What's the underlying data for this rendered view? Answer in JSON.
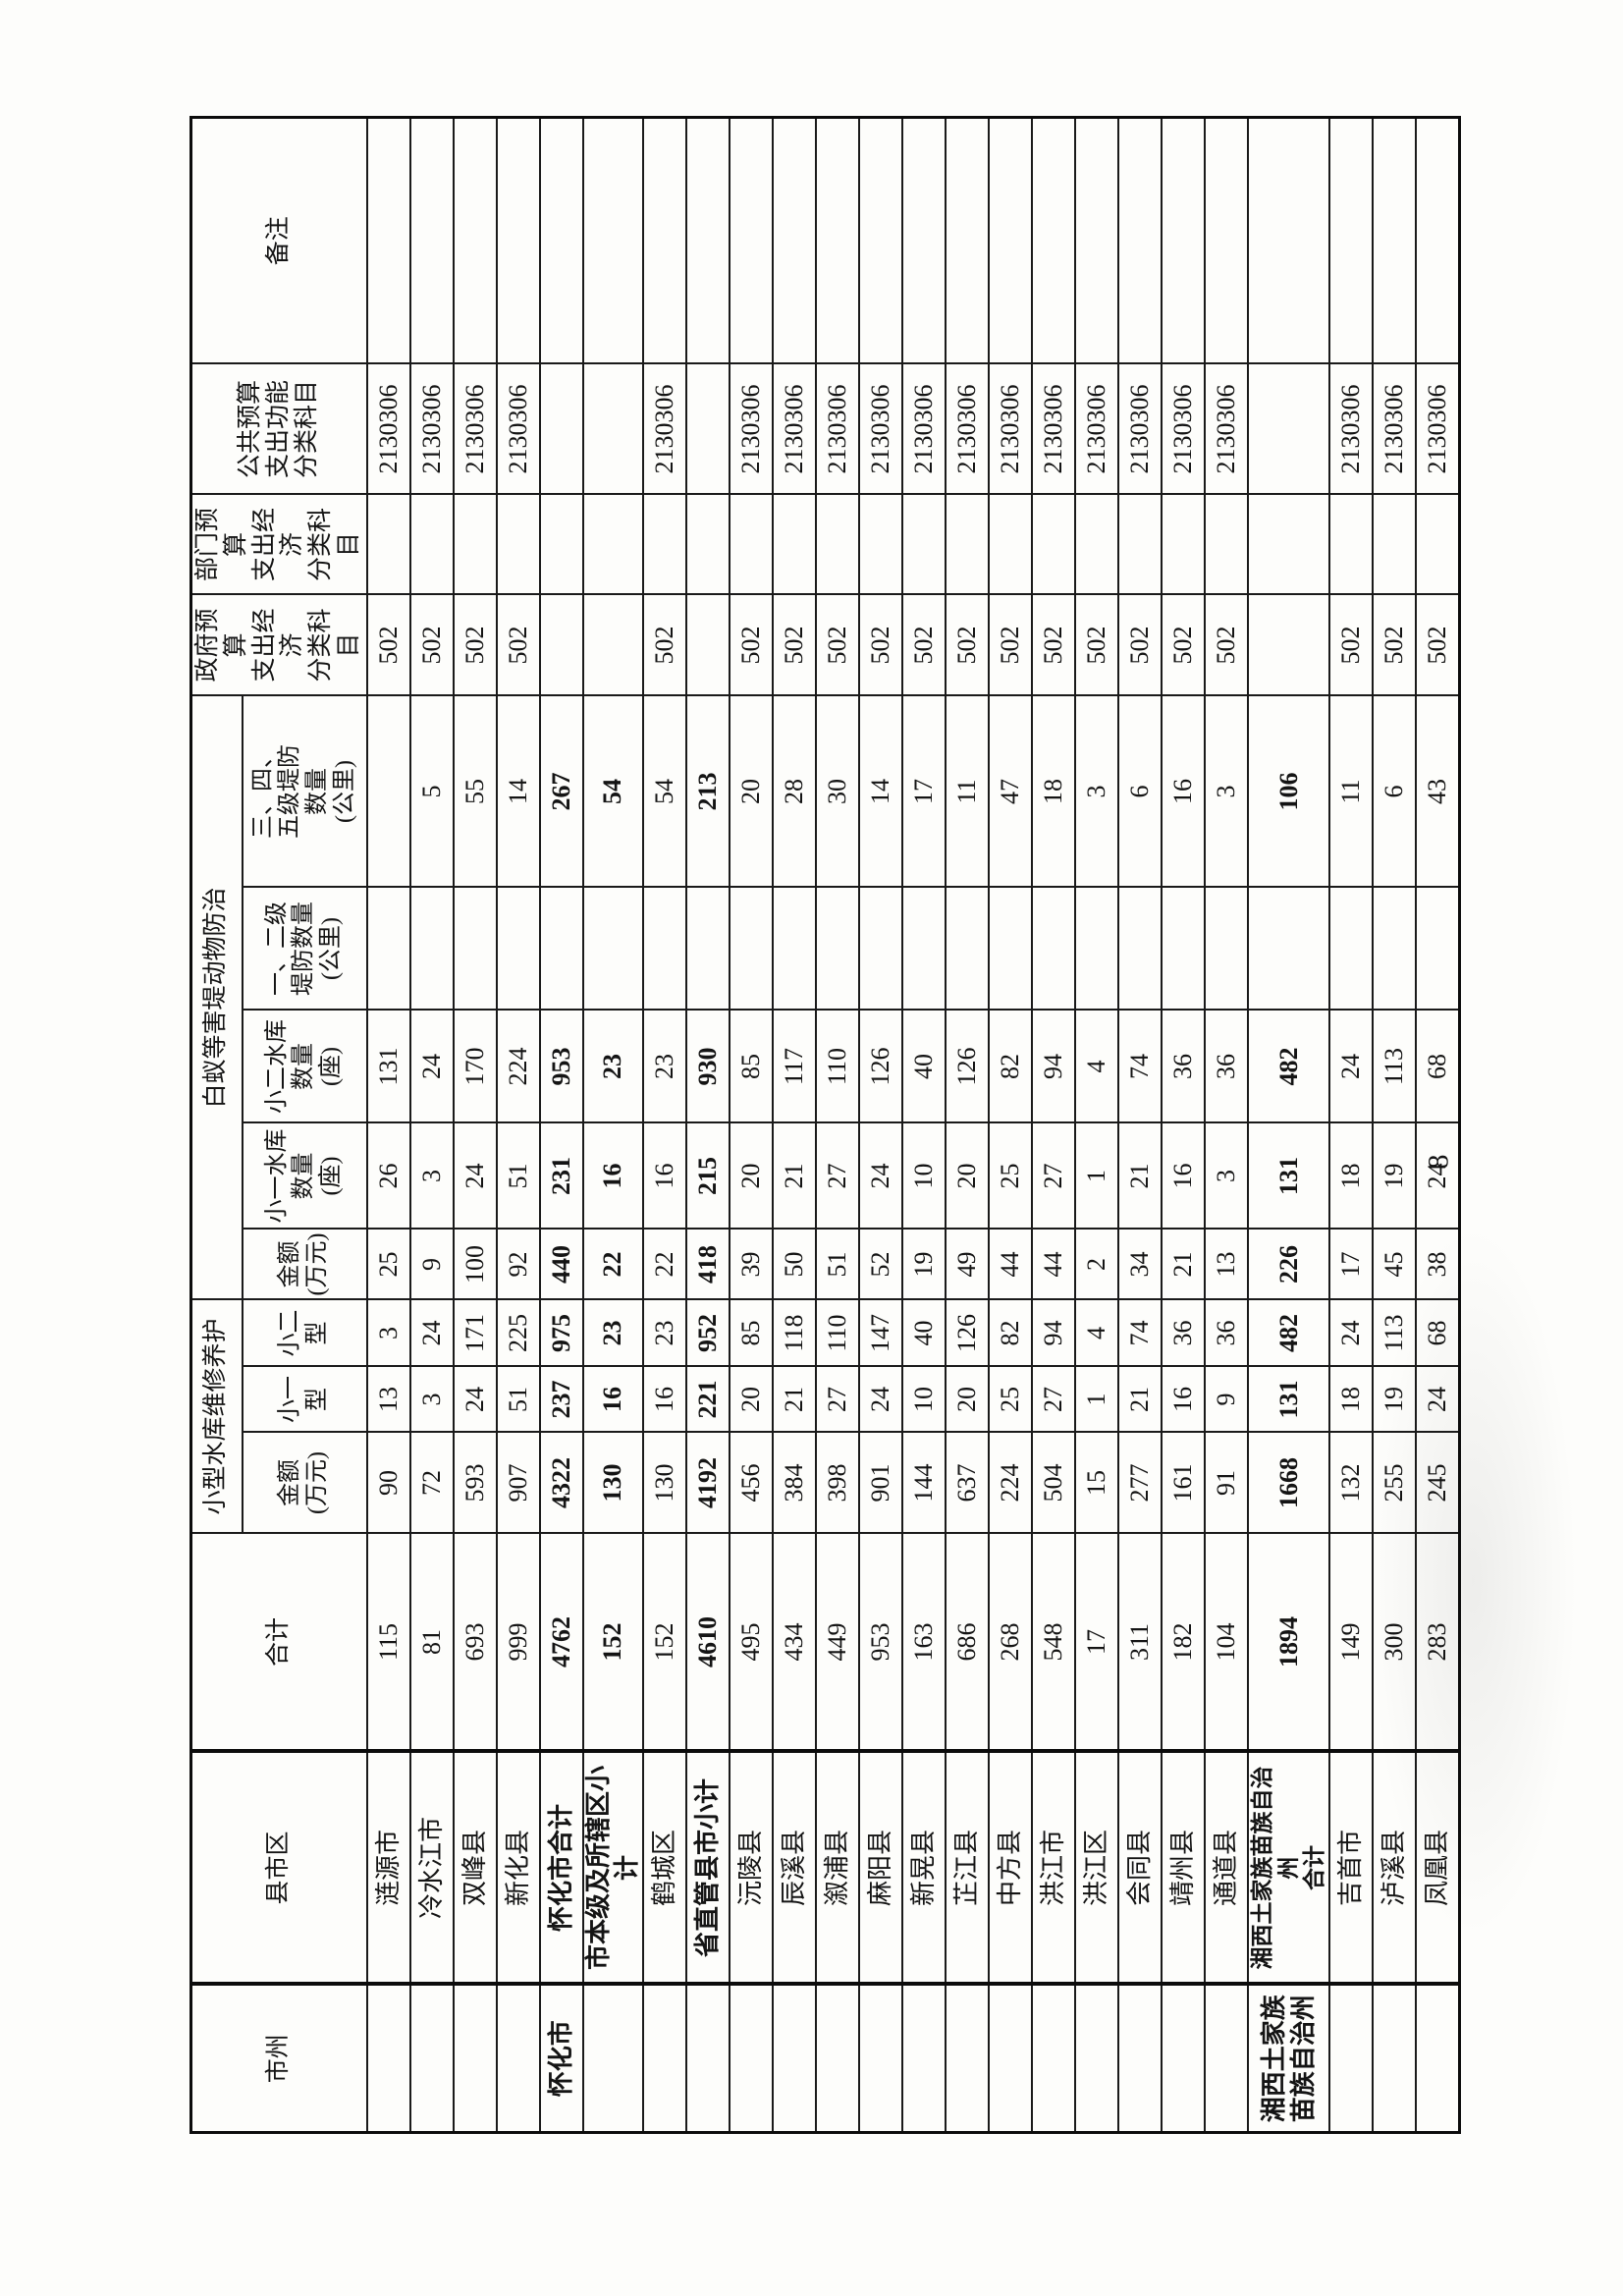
{
  "page": {
    "number": "8"
  },
  "table": {
    "headers": {
      "prefecture": "市州",
      "county": "县市区",
      "total": "合计",
      "group_reservoir": "小型水库维修养护",
      "group_pest": "白蚁等害堤动物防治",
      "maint_amount": "金额\n(万元)",
      "maint_small1": "小一\n型",
      "maint_small2": "小二\n型",
      "pest_amount": "金额\n(万元)",
      "pest_res1": "小一水库\n数量\n(座)",
      "pest_res2": "小二水库\n数量\n(座)",
      "dike_12": "一、二级\n堤防数量\n(公里)",
      "dike_345": "三、四、\n五级堤防\n数量\n(公里)",
      "gov_code": "政府预算\n支出经济\n分类科目",
      "dept_code": "部门预算\n支出经济\n分类科目",
      "public_code": "公共预算\n支出功能\n分类科目",
      "remark": "备注"
    },
    "rows": [
      {
        "prefecture": "",
        "county": "涟源市",
        "total": "115",
        "maint_amount": "90",
        "maint_small1": "13",
        "maint_small2": "3",
        "pest_amount": "25",
        "pest_res1": "26",
        "pest_res2": "131",
        "dike_12": "",
        "dike_345": "",
        "gov_code": "502",
        "dept_code": "",
        "public_code": "2130306",
        "remark": "",
        "bold": false,
        "tall": false
      },
      {
        "prefecture": "",
        "county": "冷水江市",
        "total": "81",
        "maint_amount": "72",
        "maint_small1": "3",
        "maint_small2": "24",
        "pest_amount": "9",
        "pest_res1": "3",
        "pest_res2": "24",
        "dike_12": "",
        "dike_345": "5",
        "gov_code": "502",
        "dept_code": "",
        "public_code": "2130306",
        "remark": "",
        "bold": false,
        "tall": false
      },
      {
        "prefecture": "",
        "county": "双峰县",
        "total": "693",
        "maint_amount": "593",
        "maint_small1": "24",
        "maint_small2": "171",
        "pest_amount": "100",
        "pest_res1": "24",
        "pest_res2": "170",
        "dike_12": "",
        "dike_345": "55",
        "gov_code": "502",
        "dept_code": "",
        "public_code": "2130306",
        "remark": "",
        "bold": false,
        "tall": false
      },
      {
        "prefecture": "",
        "county": "新化县",
        "total": "999",
        "maint_amount": "907",
        "maint_small1": "51",
        "maint_small2": "225",
        "pest_amount": "92",
        "pest_res1": "51",
        "pest_res2": "224",
        "dike_12": "",
        "dike_345": "14",
        "gov_code": "502",
        "dept_code": "",
        "public_code": "2130306",
        "remark": "",
        "bold": false,
        "tall": false
      },
      {
        "prefecture": "怀化市",
        "county": "怀化市合计",
        "total": "4762",
        "maint_amount": "4322",
        "maint_small1": "237",
        "maint_small2": "975",
        "pest_amount": "440",
        "pest_res1": "231",
        "pest_res2": "953",
        "dike_12": "",
        "dike_345": "267",
        "gov_code": "",
        "dept_code": "",
        "public_code": "",
        "remark": "",
        "bold": true,
        "tall": false
      },
      {
        "prefecture": "",
        "county": "市本级及所辖区小计",
        "total": "152",
        "maint_amount": "130",
        "maint_small1": "16",
        "maint_small2": "23",
        "pest_amount": "22",
        "pest_res1": "16",
        "pest_res2": "23",
        "dike_12": "",
        "dike_345": "54",
        "gov_code": "",
        "dept_code": "",
        "public_code": "",
        "remark": "",
        "bold": true,
        "tall": false
      },
      {
        "prefecture": "",
        "county": "鹤城区",
        "total": "152",
        "maint_amount": "130",
        "maint_small1": "16",
        "maint_small2": "23",
        "pest_amount": "22",
        "pest_res1": "16",
        "pest_res2": "23",
        "dike_12": "",
        "dike_345": "54",
        "gov_code": "502",
        "dept_code": "",
        "public_code": "2130306",
        "remark": "",
        "bold": false,
        "tall": false
      },
      {
        "prefecture": "",
        "county": "省直管县市小计",
        "total": "4610",
        "maint_amount": "4192",
        "maint_small1": "221",
        "maint_small2": "952",
        "pest_amount": "418",
        "pest_res1": "215",
        "pest_res2": "930",
        "dike_12": "",
        "dike_345": "213",
        "gov_code": "",
        "dept_code": "",
        "public_code": "",
        "remark": "",
        "bold": true,
        "tall": false
      },
      {
        "prefecture": "",
        "county": "沅陵县",
        "total": "495",
        "maint_amount": "456",
        "maint_small1": "20",
        "maint_small2": "85",
        "pest_amount": "39",
        "pest_res1": "20",
        "pest_res2": "85",
        "dike_12": "",
        "dike_345": "20",
        "gov_code": "502",
        "dept_code": "",
        "public_code": "2130306",
        "remark": "",
        "bold": false,
        "tall": false
      },
      {
        "prefecture": "",
        "county": "辰溪县",
        "total": "434",
        "maint_amount": "384",
        "maint_small1": "21",
        "maint_small2": "118",
        "pest_amount": "50",
        "pest_res1": "21",
        "pest_res2": "117",
        "dike_12": "",
        "dike_345": "28",
        "gov_code": "502",
        "dept_code": "",
        "public_code": "2130306",
        "remark": "",
        "bold": false,
        "tall": false
      },
      {
        "prefecture": "",
        "county": "溆浦县",
        "total": "449",
        "maint_amount": "398",
        "maint_small1": "27",
        "maint_small2": "110",
        "pest_amount": "51",
        "pest_res1": "27",
        "pest_res2": "110",
        "dike_12": "",
        "dike_345": "30",
        "gov_code": "502",
        "dept_code": "",
        "public_code": "2130306",
        "remark": "",
        "bold": false,
        "tall": false
      },
      {
        "prefecture": "",
        "county": "麻阳县",
        "total": "953",
        "maint_amount": "901",
        "maint_small1": "24",
        "maint_small2": "147",
        "pest_amount": "52",
        "pest_res1": "24",
        "pest_res2": "126",
        "dike_12": "",
        "dike_345": "14",
        "gov_code": "502",
        "dept_code": "",
        "public_code": "2130306",
        "remark": "",
        "bold": false,
        "tall": false
      },
      {
        "prefecture": "",
        "county": "新晃县",
        "total": "163",
        "maint_amount": "144",
        "maint_small1": "10",
        "maint_small2": "40",
        "pest_amount": "19",
        "pest_res1": "10",
        "pest_res2": "40",
        "dike_12": "",
        "dike_345": "17",
        "gov_code": "502",
        "dept_code": "",
        "public_code": "2130306",
        "remark": "",
        "bold": false,
        "tall": false
      },
      {
        "prefecture": "",
        "county": "芷江县",
        "total": "686",
        "maint_amount": "637",
        "maint_small1": "20",
        "maint_small2": "126",
        "pest_amount": "49",
        "pest_res1": "20",
        "pest_res2": "126",
        "dike_12": "",
        "dike_345": "11",
        "gov_code": "502",
        "dept_code": "",
        "public_code": "2130306",
        "remark": "",
        "bold": false,
        "tall": false
      },
      {
        "prefecture": "",
        "county": "中方县",
        "total": "268",
        "maint_amount": "224",
        "maint_small1": "25",
        "maint_small2": "82",
        "pest_amount": "44",
        "pest_res1": "25",
        "pest_res2": "82",
        "dike_12": "",
        "dike_345": "47",
        "gov_code": "502",
        "dept_code": "",
        "public_code": "2130306",
        "remark": "",
        "bold": false,
        "tall": false
      },
      {
        "prefecture": "",
        "county": "洪江市",
        "total": "548",
        "maint_amount": "504",
        "maint_small1": "27",
        "maint_small2": "94",
        "pest_amount": "44",
        "pest_res1": "27",
        "pest_res2": "94",
        "dike_12": "",
        "dike_345": "18",
        "gov_code": "502",
        "dept_code": "",
        "public_code": "2130306",
        "remark": "",
        "bold": false,
        "tall": false
      },
      {
        "prefecture": "",
        "county": "洪江区",
        "total": "17",
        "maint_amount": "15",
        "maint_small1": "1",
        "maint_small2": "4",
        "pest_amount": "2",
        "pest_res1": "1",
        "pest_res2": "4",
        "dike_12": "",
        "dike_345": "3",
        "gov_code": "502",
        "dept_code": "",
        "public_code": "2130306",
        "remark": "",
        "bold": false,
        "tall": false
      },
      {
        "prefecture": "",
        "county": "会同县",
        "total": "311",
        "maint_amount": "277",
        "maint_small1": "21",
        "maint_small2": "74",
        "pest_amount": "34",
        "pest_res1": "21",
        "pest_res2": "74",
        "dike_12": "",
        "dike_345": "6",
        "gov_code": "502",
        "dept_code": "",
        "public_code": "2130306",
        "remark": "",
        "bold": false,
        "tall": false
      },
      {
        "prefecture": "",
        "county": "靖州县",
        "total": "182",
        "maint_amount": "161",
        "maint_small1": "16",
        "maint_small2": "36",
        "pest_amount": "21",
        "pest_res1": "16",
        "pest_res2": "36",
        "dike_12": "",
        "dike_345": "16",
        "gov_code": "502",
        "dept_code": "",
        "public_code": "2130306",
        "remark": "",
        "bold": false,
        "tall": false
      },
      {
        "prefecture": "",
        "county": "通道县",
        "total": "104",
        "maint_amount": "91",
        "maint_small1": "9",
        "maint_small2": "36",
        "pest_amount": "13",
        "pest_res1": "3",
        "pest_res2": "36",
        "dike_12": "",
        "dike_345": "3",
        "gov_code": "502",
        "dept_code": "",
        "public_code": "2130306",
        "remark": "",
        "bold": false,
        "tall": false
      },
      {
        "prefecture": "湘西土家族苗族自治州",
        "county": "湘西土家族苗族自治州\n合计",
        "total": "1894",
        "maint_amount": "1668",
        "maint_small1": "131",
        "maint_small2": "482",
        "pest_amount": "226",
        "pest_res1": "131",
        "pest_res2": "482",
        "dike_12": "",
        "dike_345": "106",
        "gov_code": "",
        "dept_code": "",
        "public_code": "",
        "remark": "",
        "bold": true,
        "tall": true
      },
      {
        "prefecture": "",
        "county": "吉首市",
        "total": "149",
        "maint_amount": "132",
        "maint_small1": "18",
        "maint_small2": "24",
        "pest_amount": "17",
        "pest_res1": "18",
        "pest_res2": "24",
        "dike_12": "",
        "dike_345": "11",
        "gov_code": "502",
        "dept_code": "",
        "public_code": "2130306",
        "remark": "",
        "bold": false,
        "tall": false
      },
      {
        "prefecture": "",
        "county": "泸溪县",
        "total": "300",
        "maint_amount": "255",
        "maint_small1": "19",
        "maint_small2": "113",
        "pest_amount": "45",
        "pest_res1": "19",
        "pest_res2": "113",
        "dike_12": "",
        "dike_345": "6",
        "gov_code": "502",
        "dept_code": "",
        "public_code": "2130306",
        "remark": "",
        "bold": false,
        "tall": false
      },
      {
        "prefecture": "",
        "county": "凤凰县",
        "total": "283",
        "maint_amount": "245",
        "maint_small1": "24",
        "maint_small2": "68",
        "pest_amount": "38",
        "pest_res1": "24",
        "pest_res2": "68",
        "dike_12": "",
        "dike_345": "43",
        "gov_code": "502",
        "dept_code": "",
        "public_code": "2130306",
        "remark": "",
        "bold": false,
        "tall": false
      }
    ]
  }
}
